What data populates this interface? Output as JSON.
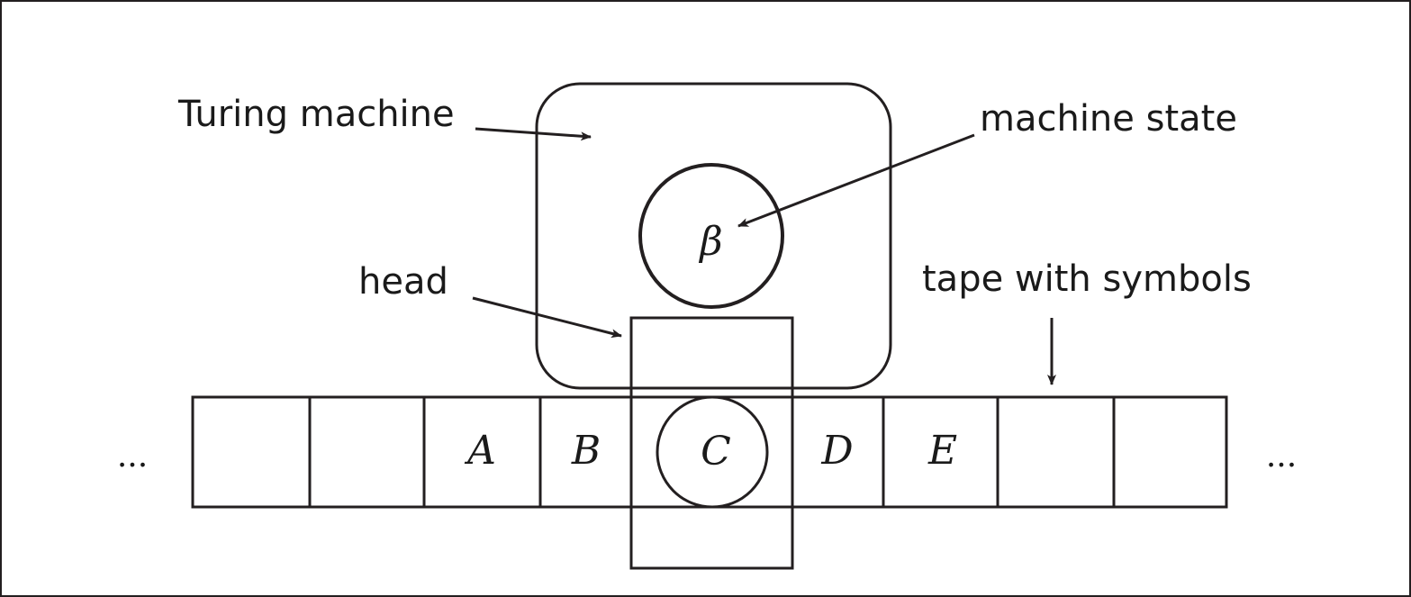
{
  "labels": {
    "turing_machine": "Turing machine",
    "machine_state": "machine state",
    "head": "head",
    "tape_with_symbols": "tape with symbols"
  },
  "state_symbol": "β",
  "ellipsis_left": "...",
  "ellipsis_right": "...",
  "tape_cells": [
    "",
    "",
    "A",
    "B",
    "C",
    "D",
    "E",
    "",
    ""
  ],
  "head_symbol": "C",
  "colors": {
    "ink": "#231f20",
    "background": "#ffffff"
  }
}
